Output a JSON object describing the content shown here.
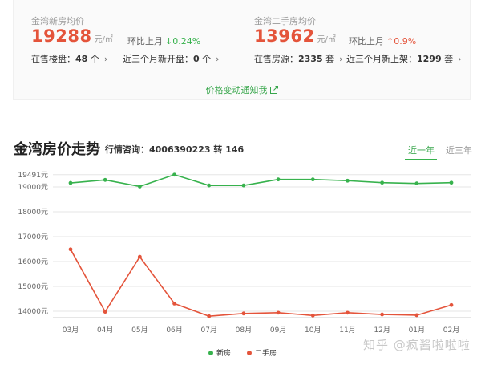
{
  "new_house": {
    "label": "金湾新房均价",
    "price": "19288",
    "unit": "元/㎡",
    "change_label": "环比上月",
    "change_arrow": "↓",
    "change_value": "0.24%",
    "onsale_label": "在售楼盘：",
    "onsale_value": "48",
    "onsale_unit": " 个",
    "new_open_label": "近三个月新开盘：",
    "new_open_value": "0",
    "new_open_unit": " 个"
  },
  "second_house": {
    "label": "金湾二手房均价",
    "price": "13962",
    "unit": "元/㎡",
    "change_label": "环比上月",
    "change_arrow": "↑",
    "change_value": "0.9%",
    "onsale_label": "在售房源：",
    "onsale_value": "2335",
    "onsale_unit": " 套",
    "new_list_label": "近三个月新上架：",
    "new_list_value": "1299",
    "new_list_unit": " 套"
  },
  "chevron_glyph": "›",
  "notify_link": "价格变动通知我",
  "section": {
    "title": "金湾房价走势",
    "hotline_label": "行情咨询：",
    "hotline_value": "4006390223 转 146",
    "tab_1y": "近一年",
    "tab_3y": "近三年"
  },
  "colors": {
    "new_series": "#37b24d",
    "second_series": "#e4543b",
    "accent_green": "#37a64b"
  },
  "chart_data": {
    "type": "line",
    "categories": [
      "03月",
      "04月",
      "05月",
      "06月",
      "07月",
      "08月",
      "09月",
      "10月",
      "11月",
      "12月",
      "01月",
      "02月"
    ],
    "y_ticks": [
      14000,
      15000,
      16000,
      17000,
      18000,
      19000,
      19491
    ],
    "y_tick_labels": [
      "14000元",
      "15000元",
      "16000元",
      "17000元",
      "18000元",
      "19000元",
      "19491元"
    ],
    "ylim": [
      13700,
      19491
    ],
    "grid": true,
    "legend_position": "bottom-center",
    "series": [
      {
        "name": "新房",
        "color": "#37b24d",
        "values": [
          19160,
          19280,
          19020,
          19491,
          19060,
          19060,
          19300,
          19300,
          19250,
          19170,
          19140,
          19170
        ]
      },
      {
        "name": "二手房",
        "color": "#e4543b",
        "values": [
          16490,
          13980,
          16190,
          14310,
          13800,
          13910,
          13940,
          13830,
          13940,
          13870,
          13840,
          14250
        ]
      }
    ]
  },
  "watermark": "知乎 @疯酱啦啦啦"
}
